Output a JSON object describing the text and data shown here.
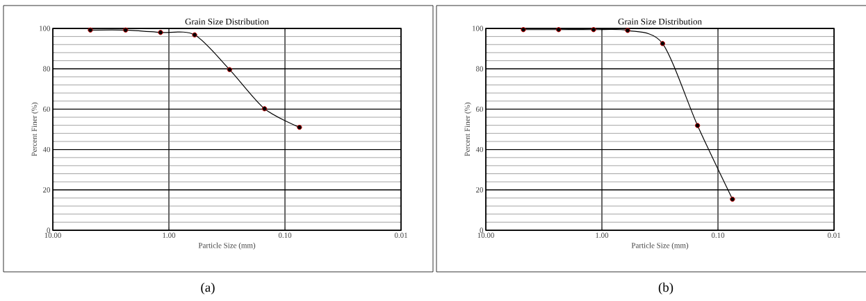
{
  "chart_data": [
    {
      "type": "line",
      "title": "Grain Size Distribution",
      "xlabel": "Particle Size (mm)",
      "ylabel": "Percent Finer (%)",
      "x": [
        4.75,
        2.36,
        1.18,
        0.6,
        0.3,
        0.15,
        0.075
      ],
      "series": [
        {
          "color": "#000000",
          "values": [
            99.2,
            99.2,
            98.0,
            96.8,
            79.6,
            60.2,
            51.0
          ]
        }
      ],
      "log": "x",
      "xlim": [
        10,
        0.01
      ],
      "ylim": [
        0,
        100
      ],
      "xticks": [
        {
          "value": 10,
          "label": "10.00"
        },
        {
          "value": 1,
          "label": "1.00"
        },
        {
          "value": 0.1,
          "label": "0.10"
        },
        {
          "value": 0.01,
          "label": "0.01"
        }
      ],
      "yticks": [
        0,
        20,
        40,
        60,
        80,
        100
      ],
      "grid": true,
      "marker": "circle",
      "line_style": "solid",
      "annotations": [
        "(a)"
      ]
    },
    {
      "type": "line",
      "title": "Grain Size Distribution",
      "xlabel": "Particle Size (mm)",
      "ylabel": "Percent Finer (%)",
      "x": [
        4.75,
        2.36,
        1.18,
        0.6,
        0.3,
        0.15,
        0.075
      ],
      "series": [
        {
          "color": "#000000",
          "values": [
            99.4,
            99.4,
            99.4,
            99.0,
            92.5,
            51.9,
            15.4
          ]
        }
      ],
      "log": "x",
      "xlim": [
        10,
        0.01
      ],
      "ylim": [
        0,
        100
      ],
      "xticks": [
        {
          "value": 10,
          "label": "10.00"
        },
        {
          "value": 1,
          "label": "1.00"
        },
        {
          "value": 0.1,
          "label": "0.10"
        },
        {
          "value": 0.01,
          "label": "0.01"
        }
      ],
      "yticks": [
        0,
        20,
        40,
        60,
        80,
        100
      ],
      "grid": true,
      "marker": "circle",
      "line_style": "solid",
      "annotations": [
        "(b)"
      ]
    }
  ]
}
